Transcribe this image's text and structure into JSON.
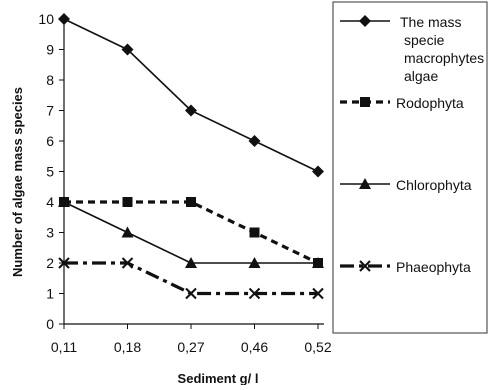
{
  "chart_data": {
    "type": "line",
    "xlabel": "Sediment g/ l",
    "ylabel": "Number of algae mass species",
    "categories": [
      "0,11",
      "0,18",
      "0,27",
      "0,46",
      "0,52"
    ],
    "ylim": [
      0,
      10
    ],
    "yticks": [
      "0",
      "1",
      "2",
      "3",
      "4",
      "5",
      "6",
      "7",
      "8",
      "9",
      "10"
    ],
    "grid": false,
    "legend_position": "right",
    "series": [
      {
        "name": "The mass specie macrophytes algae",
        "legend_lines": [
          " The mass",
          "specie",
          "macrophytes",
          "algae"
        ],
        "marker": "diamond",
        "line_style": "solid",
        "values": [
          10,
          9,
          7,
          6,
          5
        ]
      },
      {
        "name": "Rodophyta",
        "legend_lines": [
          "Rodophyta"
        ],
        "marker": "square",
        "line_style": "dotted",
        "values": [
          4,
          4,
          4,
          3,
          2
        ]
      },
      {
        "name": "Chlorophyta",
        "legend_lines": [
          "Chlorophyta"
        ],
        "marker": "triangle",
        "line_style": "solid",
        "values": [
          4,
          3,
          2,
          2,
          2
        ]
      },
      {
        "name": "Phaeophyta",
        "legend_lines": [
          "Phaeophyta"
        ],
        "marker": "x",
        "line_style": "dashdot",
        "values": [
          2,
          2,
          1,
          1,
          1
        ]
      }
    ],
    "colors": {
      "line": "#111111",
      "background": "#ffffff"
    }
  }
}
